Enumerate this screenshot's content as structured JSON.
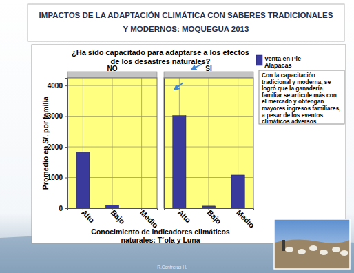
{
  "header": {
    "title": [
      "IMPACTOS DE LA ADAPTACIÓN CLIMÁTICA CON SABERES TRADICIONALES",
      "Y MODERNOS: MOQUEGUA 2013"
    ]
  },
  "annotation": "Con la capacitación tradicional y moderna, se logró que la ganadería familiar se articule más con el mercado y obtengan mayores ingresos familiares, a pesar de los eventos climáticos adversos",
  "credit": "R.Contreras H.",
  "chart_data": [
    {
      "type": "bar",
      "title": [
        "¿Ha sido capacitado para adaptarse a  los efectos",
        "de los desastres naturales?"
      ],
      "subtitle": "NO",
      "xlabel": [
        "Conocimiento de indicadores climáticos",
        "naturales:  T´ola y Luna"
      ],
      "ylabel": "Promedio en S/. por familia",
      "categories": [
        "Alto",
        "Bajo",
        "Medio"
      ],
      "series": [
        {
          "name": "Venta en Pie Alapacas",
          "color": "#3a3a9c",
          "values": [
            1830,
            100,
            0
          ]
        }
      ],
      "ylim": [
        0,
        4250
      ],
      "yticks": [
        0,
        1000,
        2000,
        3000,
        4000
      ],
      "grid": true,
      "legend": "right"
    },
    {
      "type": "bar",
      "subtitle": "SI",
      "categories": [
        "Alto",
        "Bajo",
        "Medio"
      ],
      "series": [
        {
          "color": "#3a3a9c",
          "values": [
            3020,
            70,
            1080
          ]
        }
      ],
      "ylim": [
        0,
        4250
      ],
      "yticks": [
        0,
        1000,
        2000,
        3000,
        4000
      ],
      "grid": true,
      "tick_labels": "x"
    }
  ]
}
